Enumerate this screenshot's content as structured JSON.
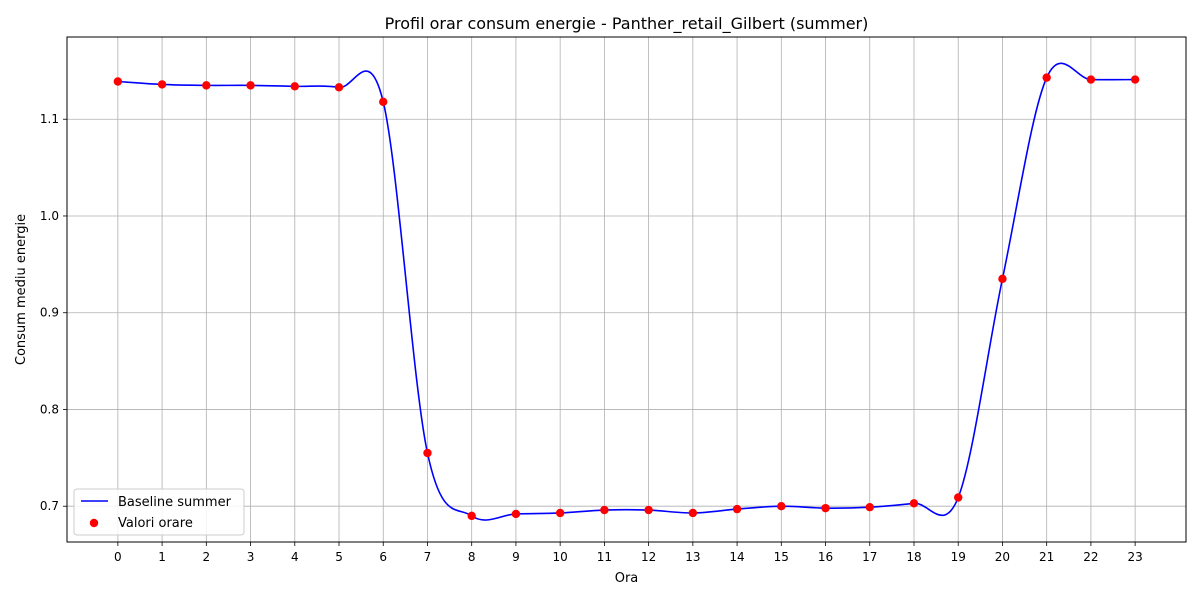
{
  "chart_data": {
    "type": "line",
    "title": "Profil orar consum energie - Panther_retail_Gilbert (summer)",
    "xlabel": "Ora",
    "ylabel": "Consum mediu energie",
    "x": [
      0,
      1,
      2,
      3,
      4,
      5,
      6,
      7,
      8,
      9,
      10,
      11,
      12,
      13,
      14,
      15,
      16,
      17,
      18,
      19,
      20,
      21,
      22,
      23
    ],
    "x_ticks": [
      "0",
      "1",
      "2",
      "3",
      "4",
      "5",
      "6",
      "7",
      "8",
      "9",
      "10",
      "11",
      "12",
      "13",
      "14",
      "15",
      "16",
      "17",
      "18",
      "19",
      "20",
      "21",
      "22",
      "23"
    ],
    "xlim": [
      -1.15,
      24.15
    ],
    "ylim": [
      0.663,
      1.185
    ],
    "y_ticks": [
      "0.7",
      "0.8",
      "0.9",
      "1.0",
      "1.1"
    ],
    "y_tick_values": [
      0.7,
      0.8,
      0.9,
      1.0,
      1.1
    ],
    "series": [
      {
        "name": "Baseline summer",
        "kind": "line",
        "color": "#0000ff",
        "smooth": true,
        "values": [
          1.139,
          1.136,
          1.135,
          1.135,
          1.134,
          1.133,
          1.118,
          0.755,
          0.69,
          0.692,
          0.693,
          0.696,
          0.696,
          0.693,
          0.697,
          0.7,
          0.698,
          0.699,
          0.703,
          0.709,
          0.935,
          1.143,
          1.141,
          1.141
        ]
      },
      {
        "name": "Valori orare",
        "kind": "scatter",
        "color": "#ff0000",
        "values": [
          1.139,
          1.136,
          1.135,
          1.135,
          1.134,
          1.133,
          1.118,
          0.755,
          0.69,
          0.692,
          0.693,
          0.696,
          0.696,
          0.693,
          0.697,
          0.7,
          0.698,
          0.699,
          0.703,
          0.709,
          0.935,
          1.143,
          1.141,
          1.141
        ]
      }
    ],
    "grid": true,
    "legend_position": "bottom-left"
  }
}
